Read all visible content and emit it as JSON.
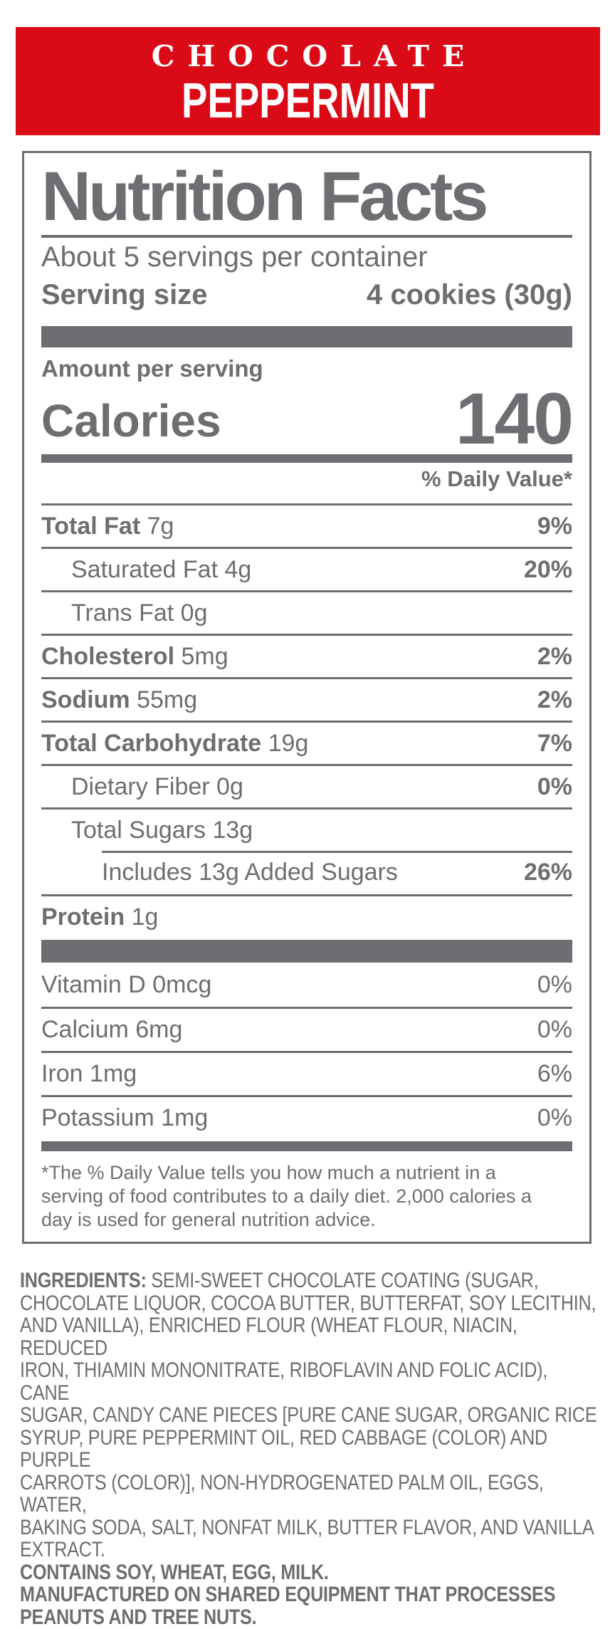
{
  "banner": {
    "line1": "CHOCOLATE",
    "line2": "PEPPERMINT",
    "bg_color": "#db0a17",
    "text_color": "#ffffff"
  },
  "panel": {
    "title": "Nutrition Facts",
    "servings_per_container": "About 5 servings per container",
    "serving_size_label": "Serving size",
    "serving_size_value": "4 cookies (30g)",
    "amount_per_serving": "Amount per serving",
    "calories_label": "Calories",
    "calories_value": "140",
    "daily_value_header": "% Daily Value*",
    "nutrients": [
      {
        "label": "Total Fat",
        "amount": "7g",
        "dv": "9%",
        "indent": 0,
        "bold_label": true
      },
      {
        "label": "Saturated Fat",
        "amount": "4g",
        "dv": "20%",
        "indent": 1,
        "bold_label": false
      },
      {
        "label": "Trans Fat",
        "amount": "0g",
        "dv": "",
        "indent": 1,
        "bold_label": false
      },
      {
        "label": "Cholesterol",
        "amount": "5mg",
        "dv": "2%",
        "indent": 0,
        "bold_label": true
      },
      {
        "label": "Sodium",
        "amount": "55mg",
        "dv": "2%",
        "indent": 0,
        "bold_label": true
      },
      {
        "label": "Total Carbohydrate",
        "amount": "19g",
        "dv": "7%",
        "indent": 0,
        "bold_label": true
      },
      {
        "label": "Dietary Fiber",
        "amount": "0g",
        "dv": "0%",
        "indent": 1,
        "bold_label": false
      },
      {
        "label": "Total Sugars",
        "amount": "13g",
        "dv": "",
        "indent": 1,
        "bold_label": false
      },
      {
        "label": "Includes 13g Added Sugars",
        "amount": "",
        "dv": "26%",
        "indent": 2,
        "bold_label": false,
        "partial_rule": true
      },
      {
        "label": "Protein",
        "amount": "1g",
        "dv": "",
        "indent": 0,
        "bold_label": true
      }
    ],
    "micronutrients": [
      {
        "label": "Vitamin D",
        "amount": "0mcg",
        "dv": "0%"
      },
      {
        "label": "Calcium",
        "amount": "6mg",
        "dv": "0%"
      },
      {
        "label": "Iron",
        "amount": "1mg",
        "dv": "6%"
      },
      {
        "label": "Potassium",
        "amount": "1mg",
        "dv": "0%"
      }
    ],
    "footnote_lines": [
      "*The % Daily Value tells you how much a nutrient in a",
      "serving of food contributes to a daily diet. 2,000 calories a",
      "day is used for general nutrition advice."
    ]
  },
  "ingredients": {
    "heading": "INGREDIENTS:",
    "first_line_rest": "SEMI-SWEET CHOCOLATE COATING (SUGAR,",
    "lines": [
      "CHOCOLATE LIQUOR, COCOA BUTTER, BUTTERFAT, SOY LECITHIN,",
      "AND VANILLA), ENRICHED FLOUR (WHEAT FLOUR, NIACIN, REDUCED",
      "IRON, THIAMIN MONONITRATE, RIBOFLAVIN AND FOLIC ACID), CANE",
      "SUGAR, CANDY CANE PIECES [PURE CANE SUGAR, ORGANIC RICE",
      "SYRUP, PURE PEPPERMINT OIL, RED CABBAGE (COLOR) AND PURPLE",
      "CARROTS (COLOR)], NON-HYDROGENATED PALM OIL, EGGS, WATER,",
      "BAKING SODA, SALT, NONFAT MILK, BUTTER FLAVOR, AND VANILLA",
      "EXTRACT."
    ],
    "allergen_lines": [
      "CONTAINS SOY, WHEAT, EGG, MILK.",
      "MANUFACTURED ON SHARED EQUIPMENT THAT PROCESSES",
      "PEANUTS AND TREE NUTS."
    ]
  },
  "colors": {
    "text_gray": "#6d6e71",
    "red": "#db0a17"
  }
}
